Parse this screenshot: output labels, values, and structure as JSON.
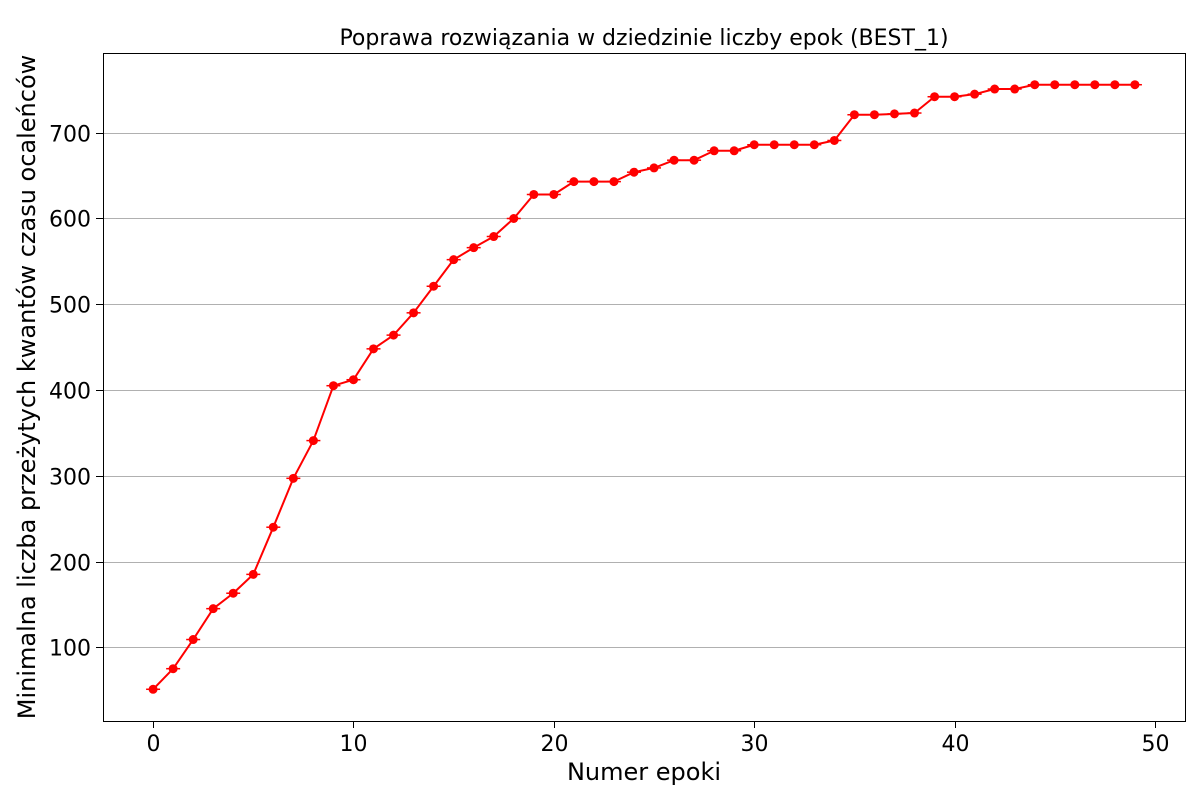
{
  "chart_data": {
    "type": "line",
    "title": "Poprawa rozwiązania w dziedzinie liczby epok (BEST_1)",
    "xlabel": "Numer epoki",
    "ylabel": "Minimalna liczba przeżytych kwantów czasu ocaleńców",
    "xlim": [
      -2.5,
      51.5
    ],
    "ylim": [
      14,
      793
    ],
    "xticks": [
      0,
      10,
      20,
      30,
      40,
      50
    ],
    "xtick_labels": [
      "0",
      "10",
      "20",
      "30",
      "40",
      "50"
    ],
    "yticks": [
      100,
      200,
      300,
      400,
      500,
      600,
      700
    ],
    "ytick_labels": [
      "100",
      "200",
      "300",
      "400",
      "500",
      "600",
      "700"
    ],
    "grid": "horizontal",
    "series": [
      {
        "name": "BEST_1",
        "color": "#ff0000",
        "marker": "circle",
        "x": [
          0,
          1,
          2,
          3,
          4,
          5,
          6,
          7,
          8,
          9,
          10,
          11,
          12,
          13,
          14,
          15,
          16,
          17,
          18,
          19,
          20,
          21,
          22,
          23,
          24,
          25,
          26,
          27,
          28,
          29,
          30,
          31,
          32,
          33,
          34,
          35,
          36,
          37,
          38,
          39,
          40,
          41,
          42,
          43,
          44,
          45,
          46,
          47,
          48,
          49
        ],
        "values": [
          51,
          75,
          109,
          145,
          163,
          185,
          240,
          297,
          341,
          405,
          412,
          448,
          464,
          490,
          521,
          552,
          566,
          579,
          600,
          628,
          628,
          643,
          643,
          643,
          654,
          659,
          668,
          668,
          679,
          679,
          686,
          686,
          686,
          686,
          691,
          721,
          721,
          722,
          723,
          742,
          742,
          745,
          751,
          751,
          756,
          756,
          756,
          756,
          756,
          756
        ]
      }
    ]
  }
}
